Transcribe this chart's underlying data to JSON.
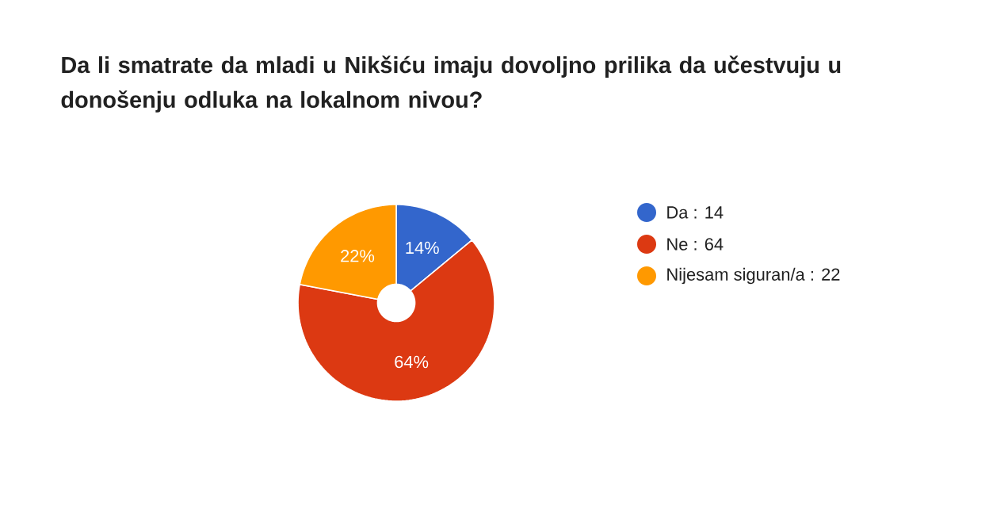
{
  "chart_data": {
    "type": "donut",
    "title": "Da li smatrate da mladi u Nikšiću imaju dovoljno prilika da učestvuju u donošenju odluka na lokalnom nivou?",
    "categories": [
      "Da : 14",
      "Ne : 64",
      "Nijesam siguran/a : 22"
    ],
    "values": [
      14,
      64,
      22
    ],
    "colors": [
      "#3366cc",
      "#dc3912",
      "#ff9900"
    ],
    "value_labels": [
      "14%",
      "64%",
      "22%"
    ],
    "legend": "right"
  }
}
